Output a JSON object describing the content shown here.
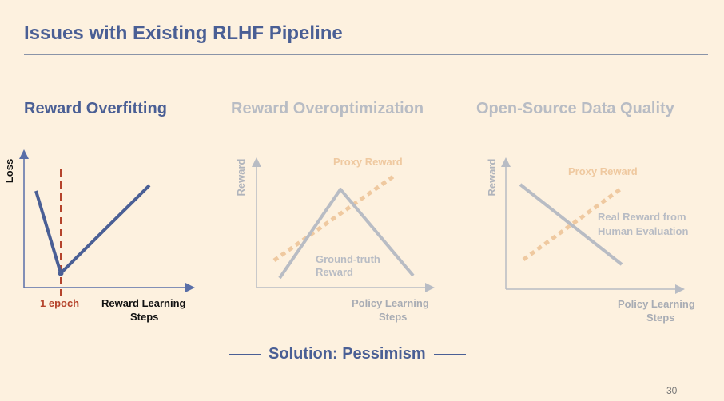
{
  "slide": {
    "title": "Issues with Existing RLHF Pipeline",
    "page_number": "30",
    "solution": "Solution: Pessimism",
    "colors": {
      "accent": "#4a5f95",
      "muted": "#b8bcc4",
      "proxy": "#efc9a0",
      "epoch": "#b5432b",
      "background": "#fdf1df"
    }
  },
  "panels": [
    {
      "heading": "Reward Overfitting",
      "ylabel": "Loss",
      "xlabel_line1": "Reward Learning",
      "xlabel_line2": "Steps",
      "marker_label": "1 epoch"
    },
    {
      "heading": "Reward Overoptimization",
      "ylabel": "Reward",
      "xlabel_line1": "Policy Learning",
      "xlabel_line2": "Steps",
      "proxy_label": "Proxy Reward",
      "true_label_line1": "Ground-truth",
      "true_label_line2": "Reward"
    },
    {
      "heading": "Open-Source Data Quality",
      "ylabel": "Reward",
      "xlabel_line1": "Policy Learning",
      "xlabel_line2": "Steps",
      "proxy_label": "Proxy Reward",
      "true_label_line1": "Real Reward from",
      "true_label_line2": "Human Evaluation"
    }
  ]
}
